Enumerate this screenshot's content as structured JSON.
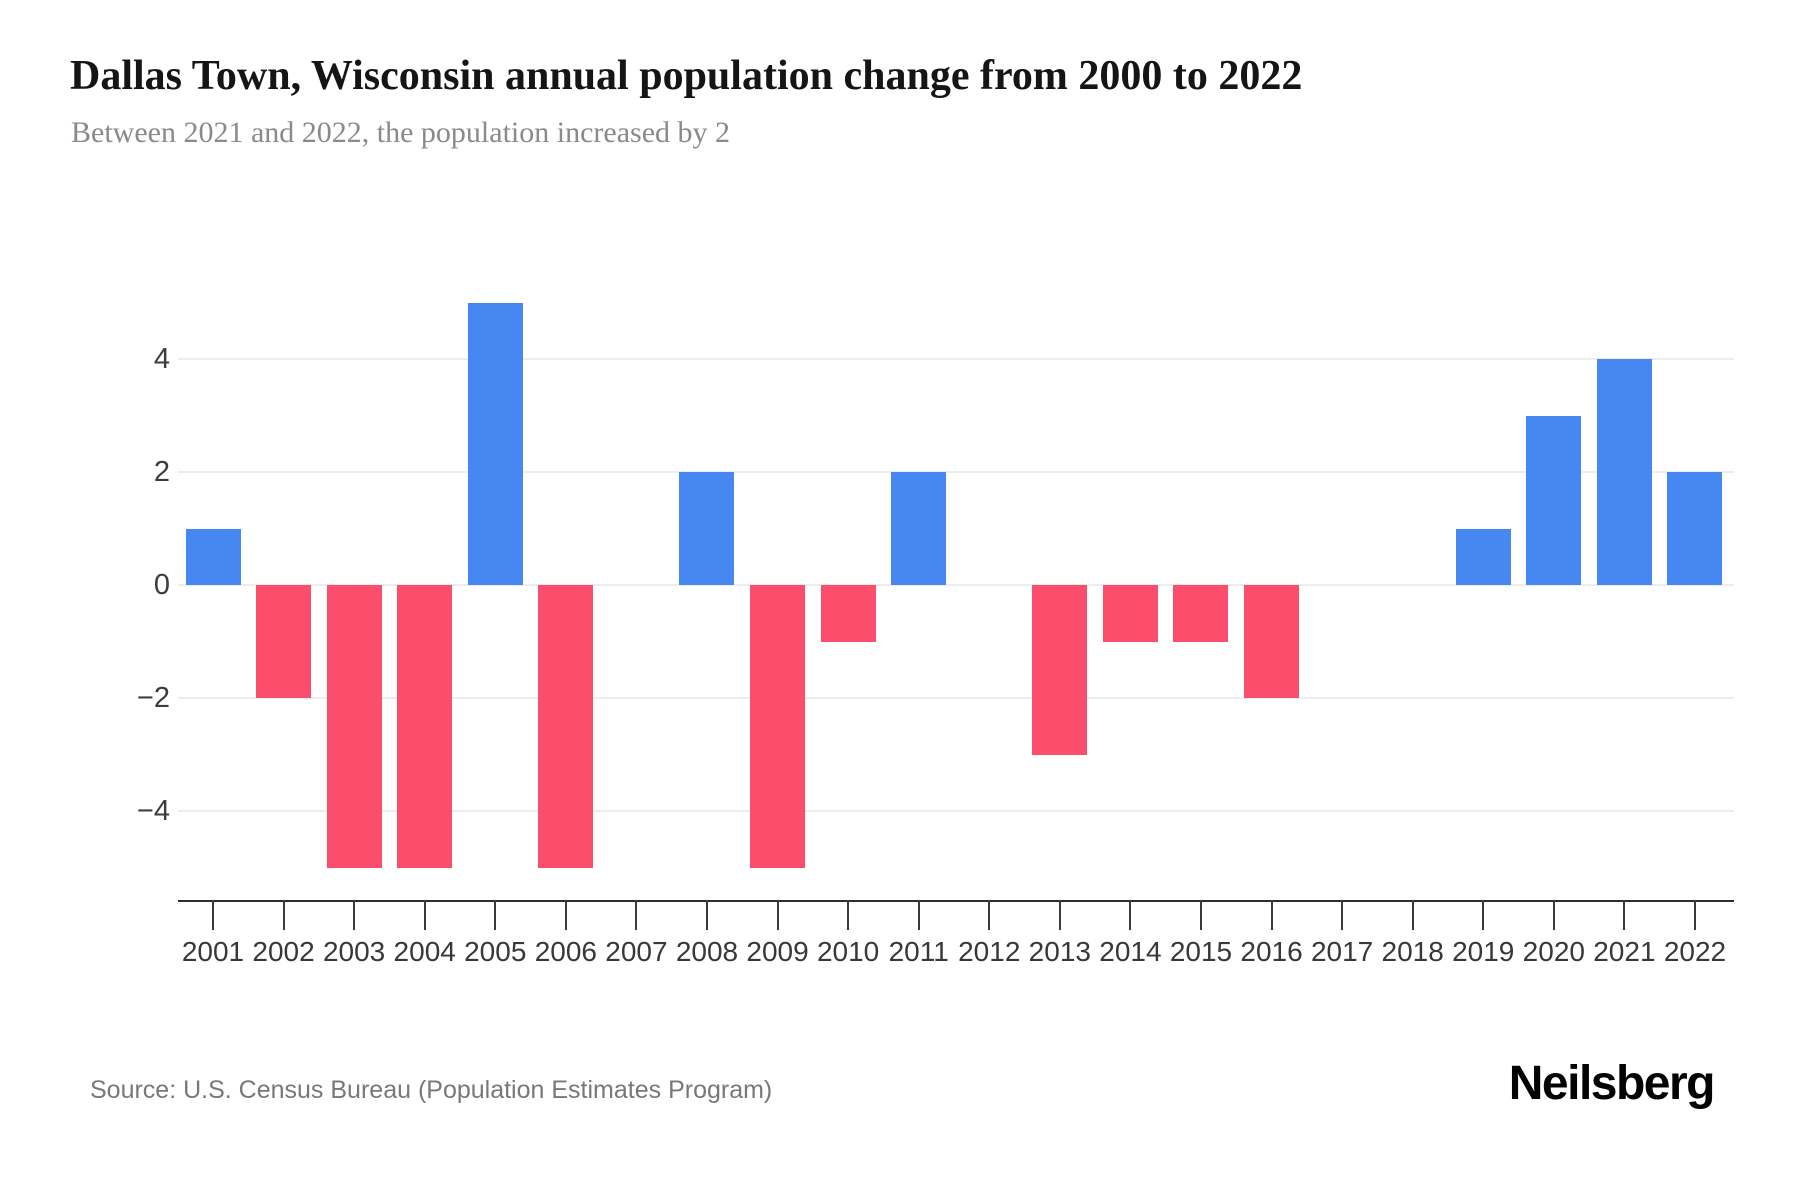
{
  "header": {
    "title": "Dallas Town, Wisconsin annual population change from 2000 to 2022",
    "subtitle": "Between 2021 and 2022, the population increased by 2"
  },
  "footer": {
    "source": "Source: U.S. Census Bureau (Population Estimates Program)",
    "brand": "Neilsberg"
  },
  "chart_data": {
    "type": "bar",
    "title": "Dallas Town, Wisconsin annual population change from 2000 to 2022",
    "subtitle": "Between 2021 and 2022, the population increased by 2",
    "categories": [
      "2001",
      "2002",
      "2003",
      "2004",
      "2005",
      "2006",
      "2007",
      "2008",
      "2009",
      "2010",
      "2011",
      "2012",
      "2013",
      "2014",
      "2015",
      "2016",
      "2017",
      "2018",
      "2019",
      "2020",
      "2021",
      "2022"
    ],
    "values": [
      1,
      -2,
      -5,
      -5,
      5,
      -5,
      0,
      2,
      -5,
      -1,
      2,
      0,
      -3,
      -1,
      -1,
      -2,
      0,
      0,
      1,
      3,
      4,
      2
    ],
    "xlabel": "",
    "ylabel": "",
    "ylim": [
      -5,
      5
    ],
    "yticks": [
      -4,
      -2,
      0,
      2,
      4
    ],
    "grid": true,
    "legend": "none",
    "colors": {
      "positive": "#4687F1",
      "negative": "#FB4D6C",
      "gridline": "#ededed",
      "axis": "#2e2e2e",
      "tick_label": "#383838"
    }
  }
}
